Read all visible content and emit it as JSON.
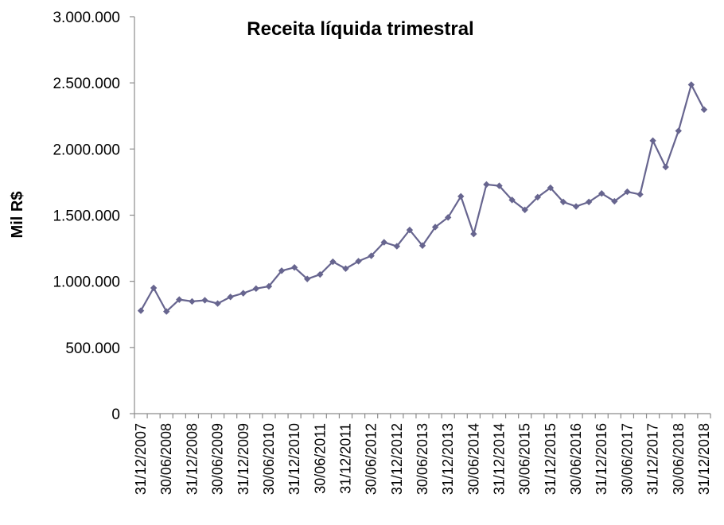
{
  "chart_data": {
    "type": "line",
    "title": "Receita líquida trimestral",
    "xlabel": "",
    "ylabel": "Mil R$",
    "ylim": [
      0,
      3000000
    ],
    "yticks": [
      0,
      500000,
      1000000,
      1500000,
      2000000,
      2500000,
      3000000
    ],
    "ytick_labels": [
      "0",
      "500.000",
      "1.000.000",
      "1.500.000",
      "2.000.000",
      "2.500.000",
      "3.000.000"
    ],
    "grid": false,
    "legend": "none",
    "color": "#67658f",
    "x": [
      "31/12/2007",
      "31/03/2008",
      "30/06/2008",
      "30/09/2008",
      "31/12/2008",
      "31/03/2009",
      "30/06/2009",
      "30/09/2009",
      "31/12/2009",
      "31/03/2010",
      "30/06/2010",
      "30/09/2010",
      "31/12/2010",
      "31/03/2011",
      "30/06/2011",
      "30/09/2011",
      "31/12/2011",
      "31/03/2012",
      "30/06/2012",
      "30/09/2012",
      "31/12/2012",
      "31/03/2013",
      "30/06/2013",
      "30/09/2013",
      "31/12/2013",
      "31/03/2014",
      "30/06/2014",
      "30/09/2014",
      "31/12/2014",
      "31/03/2015",
      "30/06/2015",
      "30/09/2015",
      "31/12/2015",
      "31/03/2016",
      "30/06/2016",
      "30/09/2016",
      "31/12/2016",
      "31/03/2017",
      "30/06/2017",
      "30/09/2017",
      "31/12/2017",
      "31/03/2018",
      "30/06/2018",
      "30/09/2018",
      "31/12/2018"
    ],
    "x_tick_labels": [
      "31/12/2007",
      "30/06/2008",
      "31/12/2008",
      "30/06/2009",
      "31/12/2009",
      "30/06/2010",
      "31/12/2010",
      "30/06/2011",
      "31/12/2011",
      "30/06/2012",
      "31/12/2012",
      "30/06/2013",
      "31/12/2013",
      "30/06/2014",
      "31/12/2014",
      "30/06/2015",
      "31/12/2015",
      "30/06/2016",
      "31/12/2016",
      "30/06/2017",
      "31/12/2017",
      "30/06/2018",
      "31/12/2018"
    ],
    "values": [
      778000,
      950000,
      772000,
      862000,
      848000,
      857000,
      832000,
      882000,
      910000,
      945000,
      962000,
      1080000,
      1105000,
      1018000,
      1052000,
      1148000,
      1096000,
      1152000,
      1193000,
      1295000,
      1265000,
      1388000,
      1270000,
      1410000,
      1483000,
      1642000,
      1358000,
      1732000,
      1722000,
      1615000,
      1540000,
      1636000,
      1707000,
      1600000,
      1566000,
      1600000,
      1664000,
      1605000,
      1677000,
      1657000,
      2063000,
      1864000,
      2137000,
      2486000,
      2298000
    ]
  }
}
